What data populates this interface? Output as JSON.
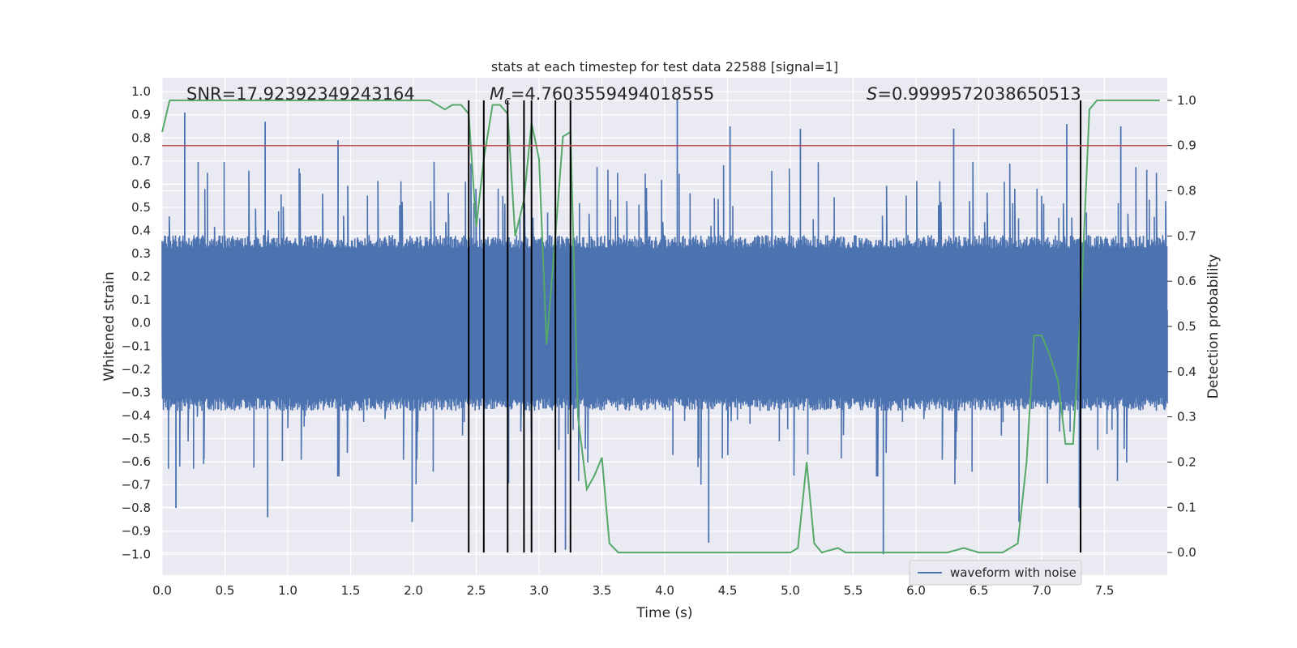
{
  "chart_data": {
    "type": "line",
    "title": "stats at each timestep for test data 22588 [signal=1]",
    "xlabel": "Time (s)",
    "ylabel": "Whitened strain",
    "y2label": "Detection probability",
    "xlim": [
      0.0,
      8.0
    ],
    "ylim": [
      -1.09,
      1.06
    ],
    "y2lim": [
      -0.05,
      1.05
    ],
    "xticks": [
      "0.0",
      "0.5",
      "1.0",
      "1.5",
      "2.0",
      "2.5",
      "3.0",
      "3.5",
      "4.0",
      "4.5",
      "5.0",
      "5.5",
      "6.0",
      "6.5",
      "7.0",
      "7.5"
    ],
    "yticks": [
      "1.0",
      "0.9",
      "0.8",
      "0.7",
      "0.6",
      "0.5",
      "0.4",
      "0.3",
      "0.2",
      "0.1",
      "0.0",
      "−0.1",
      "−0.2",
      "−0.3",
      "−0.4",
      "−0.5",
      "−0.6",
      "−0.7",
      "−0.8",
      "−0.9",
      "−1.0"
    ],
    "y2ticks": [
      "1.0",
      "0.9",
      "0.8",
      "0.7",
      "0.6",
      "0.5",
      "0.4",
      "0.3",
      "0.2",
      "0.1",
      "0.0"
    ],
    "grid": true,
    "legend_position": "lower-right",
    "annotations": {
      "snr": "SNR=17.92392349243164",
      "mc_symbol": "M",
      "mc_sub": "c",
      "mc_value": "=4.7603559494018555",
      "s_symbol": "S",
      "s_value": "=0.9999572038650513"
    },
    "threshold": {
      "value": 0.9,
      "axis": "right",
      "color": "#c44e52"
    },
    "vertical_markers": [
      2.44,
      2.56,
      2.75,
      2.88,
      2.94,
      3.13,
      3.25,
      7.31
    ],
    "series": [
      {
        "name": "waveform with noise",
        "axis": "left",
        "color": "#4c72b0",
        "kind": "noise",
        "x_range": [
          0.0,
          8.0
        ],
        "envelope": 0.38,
        "spikes": [
          {
            "x": 0.18,
            "y": 0.91
          },
          {
            "x": 0.82,
            "y": 0.87
          },
          {
            "x": 1.4,
            "y": 0.79
          },
          {
            "x": 4.1,
            "y": 0.97
          },
          {
            "x": 4.52,
            "y": 0.85
          },
          {
            "x": 5.08,
            "y": 0.84
          },
          {
            "x": 6.3,
            "y": 0.84
          },
          {
            "x": 7.2,
            "y": 0.86
          },
          {
            "x": 7.63,
            "y": 0.85
          },
          {
            "x": 0.11,
            "y": -0.8
          },
          {
            "x": 0.84,
            "y": -0.84
          },
          {
            "x": 1.99,
            "y": -0.86
          },
          {
            "x": 4.35,
            "y": -0.95
          },
          {
            "x": 5.74,
            "y": -1.0
          },
          {
            "x": 3.21,
            "y": -0.98
          },
          {
            "x": 6.82,
            "y": -0.86
          },
          {
            "x": 7.3,
            "y": -0.8
          }
        ]
      },
      {
        "name": "detection probability",
        "axis": "right",
        "color": "#55a868",
        "x": [
          0.0,
          0.06,
          0.5,
          1.0,
          1.5,
          2.0,
          2.13,
          2.25,
          2.31,
          2.38,
          2.44,
          2.5,
          2.56,
          2.63,
          2.69,
          2.75,
          2.81,
          2.88,
          2.94,
          3.0,
          3.06,
          3.13,
          3.19,
          3.25,
          3.31,
          3.38,
          3.44,
          3.5,
          3.56,
          3.63,
          3.75,
          4.0,
          4.5,
          5.0,
          5.06,
          5.13,
          5.19,
          5.25,
          5.38,
          5.44,
          5.5,
          6.0,
          6.25,
          6.38,
          6.5,
          6.69,
          6.81,
          6.88,
          6.94,
          7.0,
          7.06,
          7.13,
          7.19,
          7.25,
          7.31,
          7.38,
          7.44,
          7.5,
          7.75,
          7.94
        ],
        "y": [
          0.93,
          1.0,
          1.0,
          1.0,
          1.0,
          1.0,
          1.0,
          0.98,
          0.99,
          0.99,
          0.97,
          0.72,
          0.87,
          0.99,
          0.99,
          0.97,
          0.7,
          0.78,
          0.95,
          0.87,
          0.46,
          0.7,
          0.92,
          0.93,
          0.3,
          0.14,
          0.17,
          0.21,
          0.02,
          0.0,
          0.0,
          0.0,
          0.0,
          0.0,
          0.01,
          0.2,
          0.02,
          0.0,
          0.01,
          0.0,
          0.0,
          0.0,
          0.0,
          0.01,
          0.0,
          0.0,
          0.02,
          0.2,
          0.48,
          0.48,
          0.44,
          0.38,
          0.24,
          0.24,
          0.53,
          0.98,
          1.0,
          1.0,
          1.0,
          1.0
        ]
      }
    ]
  }
}
